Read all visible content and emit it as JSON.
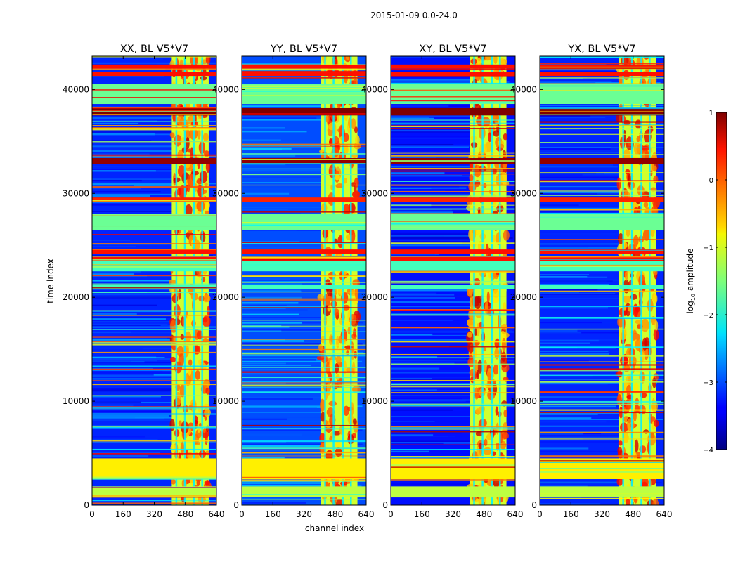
{
  "suptitle": "2015-01-09 0.0-24.0",
  "chart_data": {
    "type": "heatmap",
    "xlabel": "channel index",
    "ylabel": "time index",
    "xlim": [
      0,
      640
    ],
    "ylim": [
      0,
      43200
    ],
    "xticks": [
      0,
      160,
      320,
      480,
      640
    ],
    "yticks": [
      0,
      10000,
      20000,
      30000,
      40000
    ],
    "xtick_labels": [
      "0",
      "160",
      "320",
      "480",
      "640"
    ],
    "ytick_labels": [
      "0",
      "10000",
      "20000",
      "30000",
      "40000"
    ],
    "colorbar": {
      "label": "log10 amplitude",
      "label_prefix": "log",
      "label_sub": "10",
      "label_suffix": " amplitude",
      "range": [
        -4,
        1
      ],
      "ticks": [
        1,
        0,
        -1,
        -2,
        -3,
        -4
      ],
      "tick_labels": [
        "1",
        "0",
        "−1",
        "−2",
        "−3",
        "−4"
      ],
      "colormap": "jet"
    },
    "panels": [
      {
        "title": "XX, BL V5*V7",
        "bright_band": [
          410,
          600
        ],
        "background_level": -3.2
      },
      {
        "title": "YY, BL V5*V7",
        "bright_band": [
          405,
          595
        ],
        "background_level": -3.0
      },
      {
        "title": "XY, BL V5*V7",
        "bright_band": [
          405,
          595
        ],
        "background_level": -3.3
      },
      {
        "title": "YX, BL V5*V7",
        "bright_band": [
          405,
          600
        ],
        "background_level": -3.2
      }
    ],
    "flagged_rows": [
      {
        "range": [
          37500,
          38200
        ],
        "level": 1.0
      },
      {
        "range": [
          32800,
          33400
        ],
        "level": 0.9
      },
      {
        "range": [
          42000,
          42400
        ],
        "level": 0.3
      },
      {
        "range": [
          41300,
          41700
        ],
        "level": 0.3
      },
      {
        "range": [
          38600,
          40500
        ],
        "level": -1.6
      },
      {
        "range": [
          26500,
          28000
        ],
        "level": -1.6
      },
      {
        "range": [
          22500,
          24000
        ],
        "level": -1.8
      },
      {
        "range": [
          20800,
          21200
        ],
        "level": -1.8
      },
      {
        "range": [
          24200,
          24600
        ],
        "level": 0.3
      },
      {
        "range": [
          23500,
          23900
        ],
        "level": 0.3
      },
      {
        "range": [
          29200,
          29600
        ],
        "level": 0.2
      },
      {
        "range": [
          2500,
          4500
        ],
        "level": -0.8
      },
      {
        "range": [
          800,
          1800
        ],
        "level": -1.2
      }
    ]
  }
}
